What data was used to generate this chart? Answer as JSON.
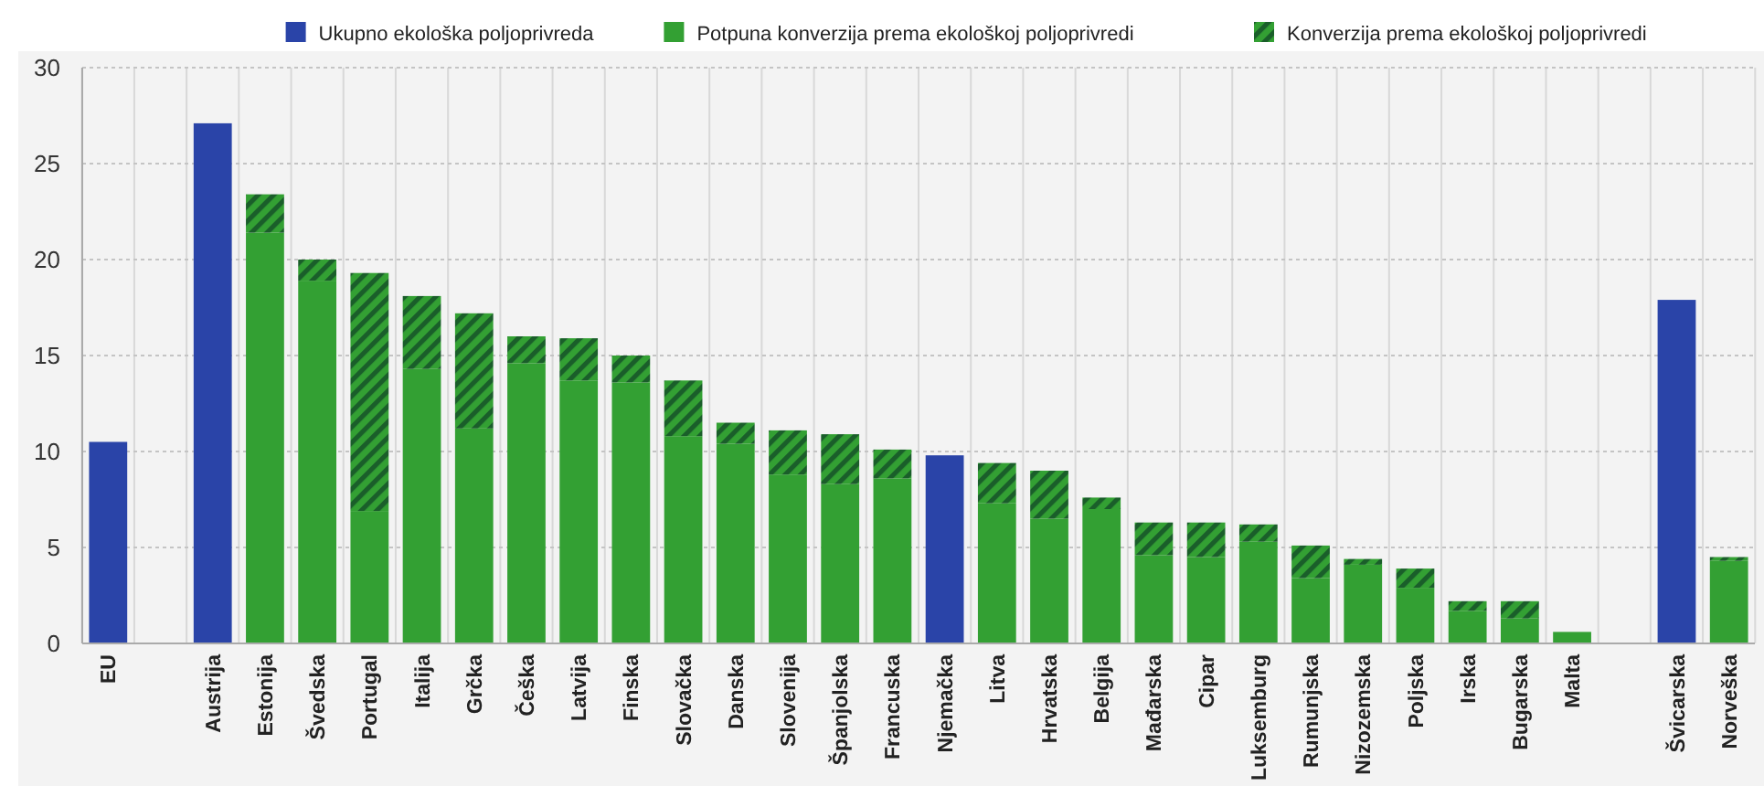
{
  "chart_data": {
    "type": "bar",
    "stacked": true,
    "categories": [
      "EU",
      null,
      "Austrija",
      "Estonija",
      "Švedska",
      "Portugal",
      "Italija",
      "Grčka",
      "Češka",
      "Latvija",
      "Finska",
      "Slovačka",
      "Danska",
      "Slovenija",
      "Španjolska",
      "Francuska",
      "Njemačka",
      "Litva",
      "Hrvatska",
      "Belgija",
      "Mađarska",
      "Cipar",
      "Luksemburg",
      "Rumunjska",
      "Nizozemska",
      "Poljska",
      "Irska",
      "Bugarska",
      "Malta",
      null,
      "Švicarska",
      "Norveška"
    ],
    "series": [
      {
        "name": "Ukupno ekološka poljoprivreda",
        "color": "#2a44a8",
        "values": [
          10.5,
          null,
          27.1,
          null,
          null,
          null,
          null,
          null,
          null,
          null,
          null,
          null,
          null,
          null,
          null,
          null,
          9.8,
          null,
          null,
          null,
          null,
          null,
          null,
          null,
          null,
          null,
          null,
          null,
          null,
          null,
          17.9,
          null
        ]
      },
      {
        "name": "Potpuna konverzija prema ekološkoj poljoprivredi",
        "color": "#33a033",
        "values": [
          null,
          null,
          null,
          21.4,
          18.9,
          6.9,
          14.3,
          11.2,
          14.6,
          13.7,
          13.6,
          10.8,
          10.4,
          8.8,
          8.3,
          8.6,
          null,
          7.3,
          6.5,
          7.0,
          4.6,
          4.5,
          5.3,
          3.4,
          4.1,
          2.9,
          1.7,
          1.3,
          0.6,
          null,
          null,
          4.3
        ]
      },
      {
        "name": "Konverzija prema ekološkoj poljoprivredi",
        "color": "#1a5e2a",
        "values": [
          null,
          null,
          null,
          2.0,
          1.1,
          12.4,
          3.8,
          6.0,
          1.4,
          2.2,
          1.4,
          2.9,
          1.1,
          2.3,
          2.6,
          1.5,
          null,
          2.1,
          2.5,
          0.6,
          1.7,
          1.8,
          0.9,
          1.7,
          0.3,
          1.0,
          0.5,
          0.9,
          null,
          null,
          null,
          0.2
        ]
      }
    ],
    "ylim": [
      0,
      30
    ],
    "yticks": [
      0,
      5,
      10,
      15,
      20,
      25,
      30
    ],
    "grid": true,
    "legend": "top right"
  }
}
